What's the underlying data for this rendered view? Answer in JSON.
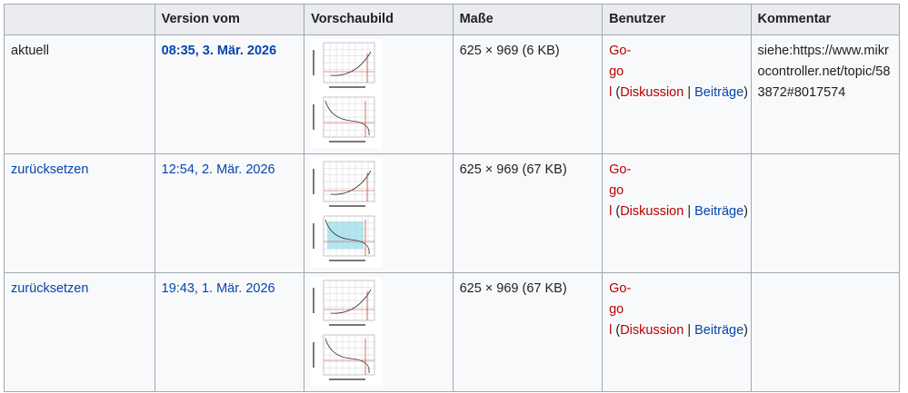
{
  "table": {
    "headers": [
      "",
      "Version vom",
      "Vorschaubild",
      "Maße",
      "Benutzer",
      "Kommentar"
    ],
    "rows": [
      {
        "action": "aktuell",
        "date": "08:35, 3. Mär. 2026",
        "dimensions": "625 × 969 (6 KB)",
        "user_line1": "Go-",
        "user_line2": "go",
        "user_line3": "l",
        "talk": "Diskussion",
        "contribs": "Beiträge",
        "comment": "siehe:https://www.mikrocontroller.net/topic/583872#8017574",
        "highlight": false
      },
      {
        "action": "zurücksetzen",
        "date": "12:54, 2. Mär. 2026",
        "dimensions": "625 × 969 (67 KB)",
        "user_line1": "Go-",
        "user_line2": "go",
        "user_line3": "l",
        "talk": "Diskussion",
        "contribs": "Beiträge",
        "comment": "",
        "highlight": true
      },
      {
        "action": "zurücksetzen",
        "date": "19:43, 1. Mär. 2026",
        "dimensions": "625 × 969 (67 KB)",
        "user_line1": "Go-",
        "user_line2": "go",
        "user_line3": "l",
        "talk": "Diskussion",
        "contribs": "Beiträge",
        "comment": "",
        "highlight": false
      }
    ]
  },
  "colors": {
    "link": "#3366cc",
    "redlink": "#ba0000",
    "header_bg": "#eaecf0",
    "cell_bg": "#f8f9fa",
    "border": "#a2a9b1",
    "highlight": "#7fd7e8"
  }
}
